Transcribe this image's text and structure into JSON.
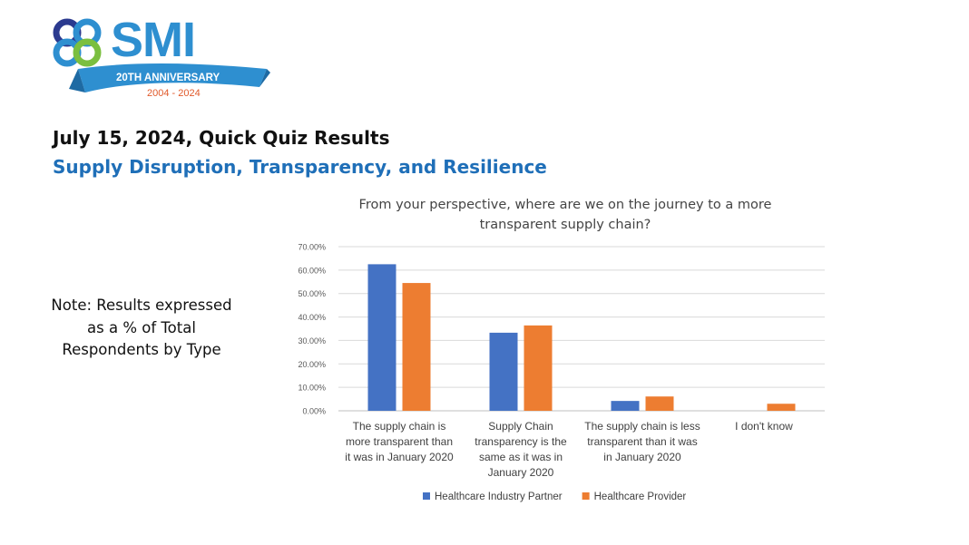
{
  "logo": {
    "text": "SMI",
    "ribbon_line1": "20TH ANNIVERSARY",
    "ribbon_years": "2004 - 2024"
  },
  "heading": "July 15, 2024, Quick Quiz Results",
  "subheading": "Supply Disruption, Transparency, and Resilience",
  "note": [
    "Note:  Results expressed",
    "as a % of Total",
    "Respondents by Type"
  ],
  "colors": {
    "title": "#1f6fb8",
    "series1": "#4472c4",
    "series2": "#ed7d31",
    "logo_blue": "#2e8fd0",
    "logo_navy": "#2b3a8f",
    "logo_green": "#7bbf3f"
  },
  "chart_data": {
    "type": "bar",
    "title_lines": [
      "From your perspective, where are we on the journey to a more",
      "transparent supply chain?"
    ],
    "categories": [
      [
        "The supply chain is",
        "more transparent than",
        "it was in January 2020"
      ],
      [
        "Supply Chain",
        "transparency is the",
        "same as it was in",
        "January 2020"
      ],
      [
        "The supply chain is less",
        "transparent than it was",
        "in January 2020"
      ],
      [
        "I don't know"
      ]
    ],
    "series": [
      {
        "name": "Healthcare Industry Partner",
        "color": "#4472c4",
        "values": [
          62.5,
          33.3,
          4.2,
          0
        ]
      },
      {
        "name": "Healthcare Provider",
        "color": "#ed7d31",
        "values": [
          54.5,
          36.4,
          6.1,
          3.0
        ]
      }
    ],
    "yticks": [
      "0.00%",
      "10.00%",
      "20.00%",
      "30.00%",
      "40.00%",
      "50.00%",
      "60.00%",
      "70.00%"
    ],
    "ylim": [
      0,
      70
    ],
    "grid": true,
    "legend": "bottom"
  }
}
